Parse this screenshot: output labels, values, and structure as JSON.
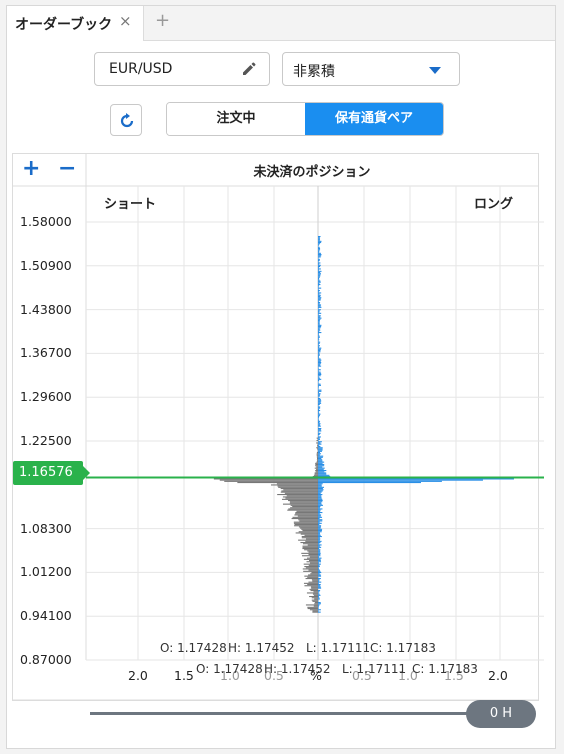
{
  "tab": {
    "label": "オーダーブック",
    "close_glyph": "×",
    "add_glyph": "+"
  },
  "controls": {
    "symbol": "EUR/USD",
    "mode": "非累積",
    "segment": {
      "left": "注文中",
      "right": "保有通貨ペア",
      "active": "right"
    }
  },
  "chart": {
    "zoom_in": "+",
    "zoom_out": "−",
    "title": "未決済のポジション",
    "short_label": "ショート",
    "long_label": "ロング",
    "current_price": "1.16576",
    "ohlc_1": {
      "o": "O: 1.17428",
      "h": "H: 1.17452",
      "l": "L: 1.17111",
      "c": "C: 1.17183"
    },
    "ohlc_2": {
      "o": "O: 1.17428",
      "h": "H: 1.17452",
      "l": "L: 1.17111",
      "c": "C: 1.17183"
    },
    "x_ticks_main": [
      "2.0",
      "1.5",
      "%",
      "2.0"
    ],
    "x_ticks_faded": [
      "1.0",
      "0.5",
      "0.5",
      "1.0",
      "1.5"
    ]
  },
  "chart_data": {
    "type": "bar",
    "y_axis_ticks": [
      "1.58000",
      "1.50900",
      "1.43800",
      "1.36700",
      "1.29600",
      "1.22500",
      "1.08300",
      "1.01200",
      "0.94100",
      "0.87000"
    ],
    "ylim": [
      0.87,
      1.58
    ],
    "current_price": 1.16576,
    "colors": {
      "short": "#777777",
      "long": "#2a8fe6",
      "price_line": "#2ab24b"
    }
  },
  "slider": {
    "label": "0 H"
  }
}
